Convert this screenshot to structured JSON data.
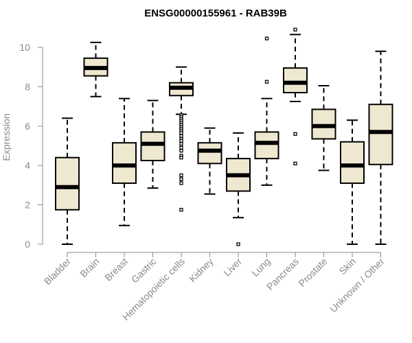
{
  "chart_data": {
    "type": "boxplot",
    "title": "ENSG00000155961 - RAB39B",
    "xlabel": "",
    "ylabel": "Expression",
    "ylim": [
      0,
      10.5
    ],
    "yticks": [
      0,
      2,
      4,
      6,
      8,
      10
    ],
    "box_fill": "#efe8d1",
    "categories": [
      "Bladder",
      "Brain",
      "Breast",
      "Gastric",
      "Hematopoietic cells",
      "Kidney",
      "Liver",
      "Lung",
      "Pancreas",
      "Prostate",
      "Skin",
      "Unknown / Other"
    ],
    "boxes": [
      {
        "name": "Bladder",
        "whisker_low": 0.0,
        "q1": 1.75,
        "median": 2.9,
        "q3": 4.4,
        "whisker_high": 6.4,
        "outliers": []
      },
      {
        "name": "Brain",
        "whisker_low": 7.5,
        "q1": 8.55,
        "median": 8.95,
        "q3": 9.45,
        "whisker_high": 10.25,
        "outliers": []
      },
      {
        "name": "Breast",
        "whisker_low": 0.95,
        "q1": 3.1,
        "median": 4.0,
        "q3": 5.15,
        "whisker_high": 7.4,
        "outliers": []
      },
      {
        "name": "Gastric",
        "whisker_low": 2.85,
        "q1": 4.25,
        "median": 5.1,
        "q3": 5.7,
        "whisker_high": 7.3,
        "outliers": []
      },
      {
        "name": "Hematopoietic cells",
        "whisker_low": 6.6,
        "q1": 7.55,
        "median": 7.95,
        "q3": 8.2,
        "whisker_high": 9.0,
        "outliers": [
          6.55,
          6.45,
          6.35,
          6.25,
          6.15,
          6.05,
          5.95,
          5.85,
          5.75,
          5.65,
          5.5,
          5.35,
          5.25,
          5.1,
          4.9,
          4.75,
          4.5,
          4.4,
          3.5,
          3.3,
          3.1,
          1.75
        ]
      },
      {
        "name": "Kidney",
        "whisker_low": 2.55,
        "q1": 4.1,
        "median": 4.75,
        "q3": 5.15,
        "whisker_high": 5.9,
        "outliers": []
      },
      {
        "name": "Liver",
        "whisker_low": 1.35,
        "q1": 2.7,
        "median": 3.5,
        "q3": 4.35,
        "whisker_high": 5.65,
        "outliers": [
          0.0
        ]
      },
      {
        "name": "Lung",
        "whisker_low": 3.0,
        "q1": 4.35,
        "median": 5.15,
        "q3": 5.7,
        "whisker_high": 7.4,
        "outliers": [
          8.25,
          10.45
        ]
      },
      {
        "name": "Pancreas",
        "whisker_low": 7.25,
        "q1": 7.7,
        "median": 8.2,
        "q3": 8.95,
        "whisker_high": 10.65,
        "outliers": [
          10.9,
          5.6,
          4.1
        ]
      },
      {
        "name": "Prostate",
        "whisker_low": 3.75,
        "q1": 5.35,
        "median": 6.0,
        "q3": 6.85,
        "whisker_high": 8.05,
        "outliers": []
      },
      {
        "name": "Skin",
        "whisker_low": 0.0,
        "q1": 3.1,
        "median": 4.0,
        "q3": 5.2,
        "whisker_high": 6.3,
        "outliers": []
      },
      {
        "name": "Unknown / Other",
        "whisker_low": 0.0,
        "q1": 4.05,
        "median": 5.7,
        "q3": 7.1,
        "whisker_high": 9.8,
        "outliers": []
      }
    ]
  }
}
